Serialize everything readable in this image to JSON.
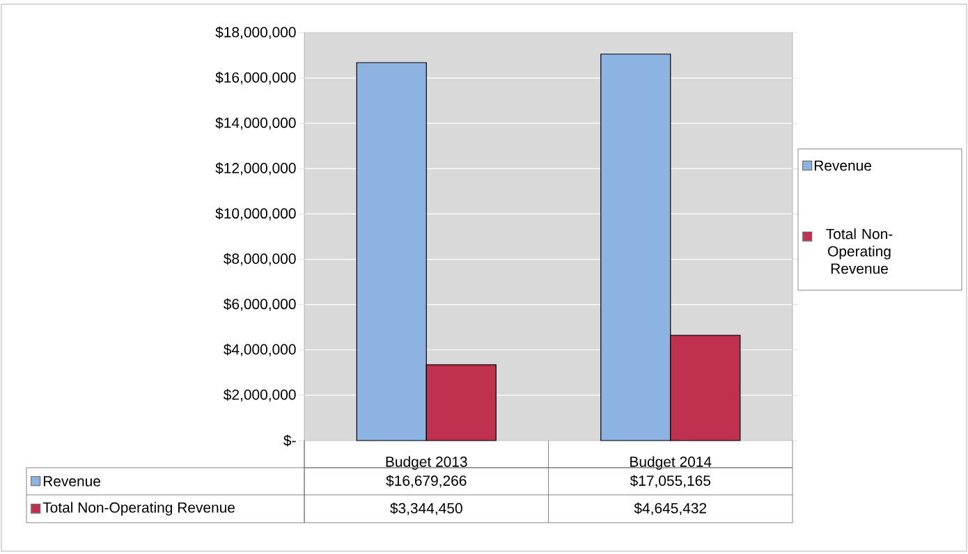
{
  "chart_data": {
    "type": "bar",
    "categories": [
      "Budget 2013",
      "Budget 2014"
    ],
    "series": [
      {
        "name": "Revenue",
        "color": "#8db3e2",
        "values": [
          16679266,
          17055165
        ],
        "value_labels": [
          "$16,679,266",
          "$17,055,165"
        ]
      },
      {
        "name": "Total Non-Operating Revenue",
        "color": "#c0304f",
        "values": [
          3344450,
          4645432
        ],
        "value_labels": [
          "$3,344,450",
          "$4,645,432"
        ]
      }
    ],
    "ylim": [
      0,
      18000000
    ],
    "yticks": [
      {
        "value": 0,
        "label": "$-"
      },
      {
        "value": 2000000,
        "label": "$2,000,000"
      },
      {
        "value": 4000000,
        "label": "$4,000,000"
      },
      {
        "value": 6000000,
        "label": "$6,000,000"
      },
      {
        "value": 8000000,
        "label": "$8,000,000"
      },
      {
        "value": 10000000,
        "label": "$10,000,000"
      },
      {
        "value": 12000000,
        "label": "$12,000,000"
      },
      {
        "value": 14000000,
        "label": "$14,000,000"
      },
      {
        "value": 16000000,
        "label": "$16,000,000"
      },
      {
        "value": 18000000,
        "label": "$18,000,000"
      }
    ],
    "grid": "y",
    "legend": "right"
  }
}
